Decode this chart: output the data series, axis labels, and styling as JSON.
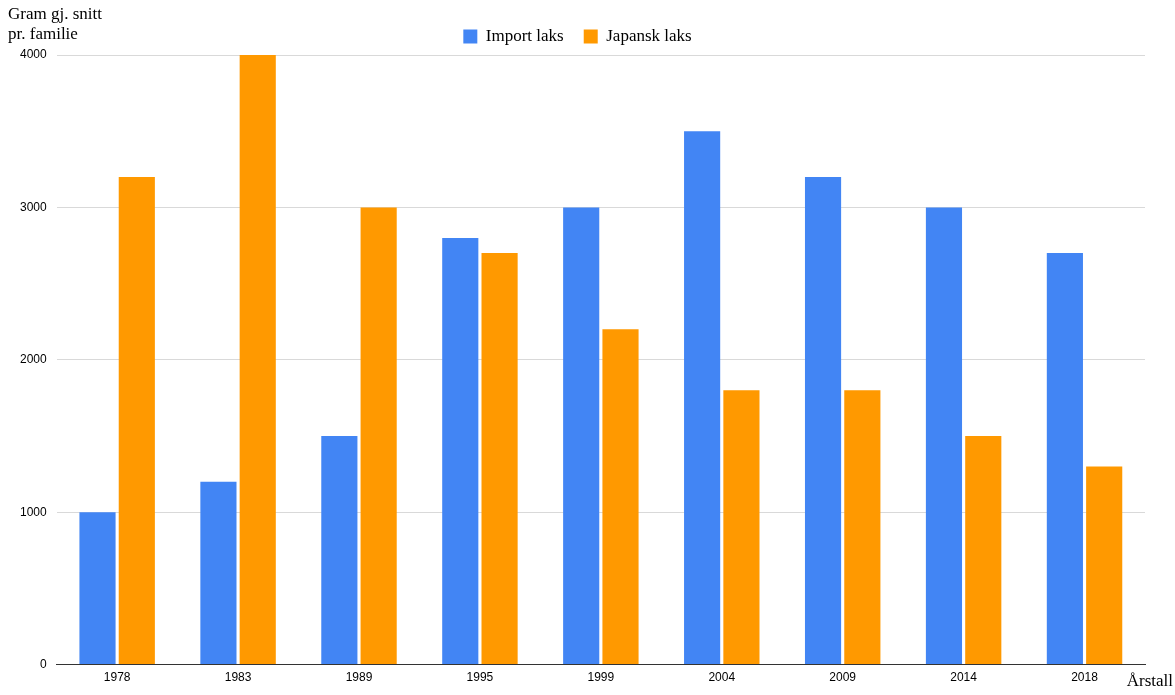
{
  "chart_data": {
    "type": "bar",
    "ylabel": "Gram gj. snitt\npr. familie",
    "xlabel": "Årstall",
    "categories": [
      "1978",
      "1983",
      "1989",
      "1995",
      "1999",
      "2004",
      "2009",
      "2014",
      "2018"
    ],
    "series": [
      {
        "name": "Import laks",
        "color": "#4285f4",
        "values": [
          1000,
          1200,
          1500,
          2800,
          3000,
          3500,
          3200,
          3000,
          2700
        ]
      },
      {
        "name": "Japansk laks",
        "color": "#ff9900",
        "values": [
          3200,
          4000,
          3000,
          2700,
          2200,
          1800,
          1800,
          1500,
          1300
        ]
      }
    ],
    "ylim": [
      0,
      4000
    ],
    "yticks": [
      0,
      1000,
      2000,
      3000,
      4000
    ],
    "grid": "y",
    "legend": "top"
  }
}
